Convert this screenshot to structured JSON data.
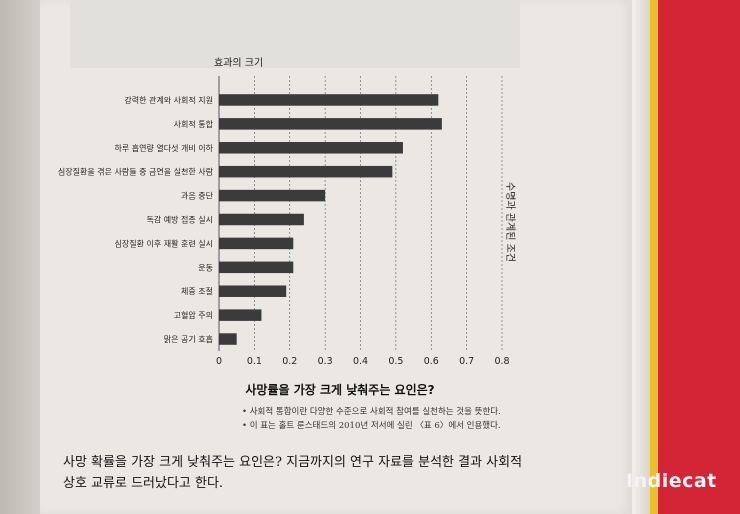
{
  "chart_data": {
    "type": "bar",
    "orientation": "horizontal",
    "title": "사망률을 가장 크게 낮춰주는 요인은?",
    "ylabel_top": "효과의 크기",
    "side_label": "수명과 관계된 조건",
    "categories": [
      "강력한 관계와 사회적 지원",
      "사회적 통합",
      "하루 흡연량 열다섯 개비 이하",
      "심장질환을 겪은 사람들 중 금연을 실천한 사람",
      "과음 중단",
      "독감 예방 접종 실시",
      "심장질환 이후 재활 훈련 실시",
      "운동",
      "체중 조절",
      "고혈압 주의",
      "맑은 공기 호흡"
    ],
    "values": [
      0.62,
      0.63,
      0.52,
      0.49,
      0.3,
      0.24,
      0.21,
      0.21,
      0.19,
      0.12,
      0.05
    ],
    "xlim": [
      0,
      0.8
    ],
    "xticks": [
      "0",
      "0.1",
      "0.2",
      "0.3",
      "0.4",
      "0.5",
      "0.6",
      "0.7",
      "0.8"
    ],
    "grid": "vertical dashed",
    "bar_color": "#3b3b3b"
  },
  "notes": [
    "• 사회적 통합이란 다양한 수준으로 사회적 참여를 실천하는 것을 뜻한다.",
    "• 이 표는 홀트 룬스태드의 2010년 저서에 실린 〈표 6〉에서 인용했다."
  ],
  "body_text": "사망 확률을 가장 크게 낮춰주는 요인은? 지금까지의 연구 자료를 분석한 결과 사회적 상호 교류로 드러났다고 한다.",
  "watermark": "Indiecat"
}
